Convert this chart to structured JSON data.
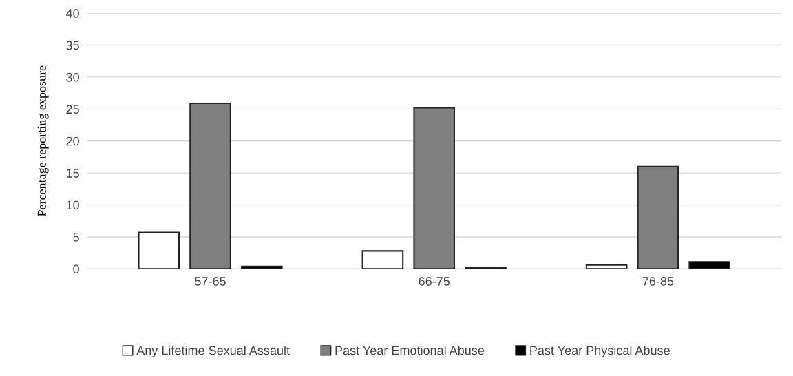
{
  "chart_data": {
    "type": "bar",
    "ylabel": "Percentage reporting exposure",
    "categories": [
      "57-65",
      "66-75",
      "76-85"
    ],
    "series": [
      {
        "name": "Any Lifetime Sexual Assault",
        "color": "#ffffff",
        "values": [
          5.7,
          2.8,
          0.6
        ]
      },
      {
        "name": "Past Year Emotional Abuse",
        "color": "#808080",
        "values": [
          25.9,
          25.2,
          16.0
        ]
      },
      {
        "name": "Past Year Physical Abuse",
        "color": "#000000",
        "values": [
          0.4,
          0.2,
          1.1
        ]
      }
    ],
    "ylim": [
      0,
      40
    ],
    "yticks": [
      0,
      5,
      10,
      15,
      20,
      25,
      30,
      35,
      40
    ],
    "grid": "y",
    "legend": "bottom"
  }
}
